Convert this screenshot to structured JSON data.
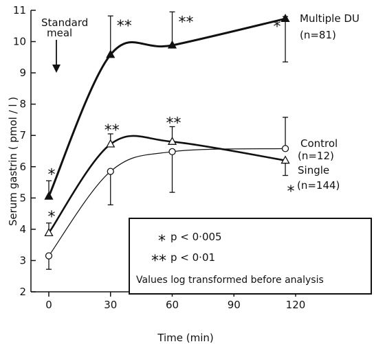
{
  "chart_data": {
    "type": "line",
    "xlabel": "Time  (min)",
    "ylabel": "Serum gastrin  ( pmol / l )",
    "xlim": [
      0,
      120
    ],
    "ylim": [
      2,
      11
    ],
    "xticks": [
      0,
      30,
      60,
      90,
      120
    ],
    "yticks": [
      2,
      3,
      4,
      5,
      6,
      7,
      8,
      9,
      10,
      11
    ],
    "grid": false,
    "series": [
      {
        "name": "Multiple DU",
        "n_label": "(n=81)",
        "marker": "filled-triangle",
        "x": [
          0,
          30,
          60,
          115
        ],
        "values": [
          5.05,
          9.58,
          9.88,
          10.73
        ],
        "error_upper": [
          5.55,
          10.82,
          10.95,
          10.8
        ],
        "error_lower": [
          5.05,
          9.58,
          9.88,
          9.35
        ],
        "significance": [
          "*",
          "**",
          "**",
          "*"
        ]
      },
      {
        "name": "Single",
        "n_label": "(n=144)",
        "marker": "open-triangle",
        "x": [
          0,
          30,
          60,
          115
        ],
        "values": [
          3.88,
          6.72,
          6.8,
          6.2
        ],
        "error_upper": [
          4.2,
          7.05,
          7.28,
          6.2
        ],
        "error_lower": [
          3.88,
          6.72,
          6.8,
          5.72
        ],
        "significance": [
          "*",
          "**",
          "**",
          "*"
        ]
      },
      {
        "name": "Control",
        "n_label": "(n=12)",
        "marker": "open-circle",
        "x": [
          0,
          30,
          60,
          115
        ],
        "values": [
          3.15,
          5.85,
          6.48,
          6.58
        ],
        "error_upper": [
          3.15,
          5.85,
          6.48,
          7.58
        ],
        "error_lower": [
          2.72,
          4.78,
          5.18,
          6.58
        ],
        "significance": [
          "",
          "",
          "",
          ""
        ]
      }
    ],
    "annotations": {
      "event_label_line1": "Standard",
      "event_label_line2": "meal",
      "legend_p1": "p < 0·005",
      "legend_p2": "p < 0·01",
      "legend_star1": "*",
      "legend_star2": "**",
      "legend_note": "Values log transformed before analysis"
    }
  }
}
